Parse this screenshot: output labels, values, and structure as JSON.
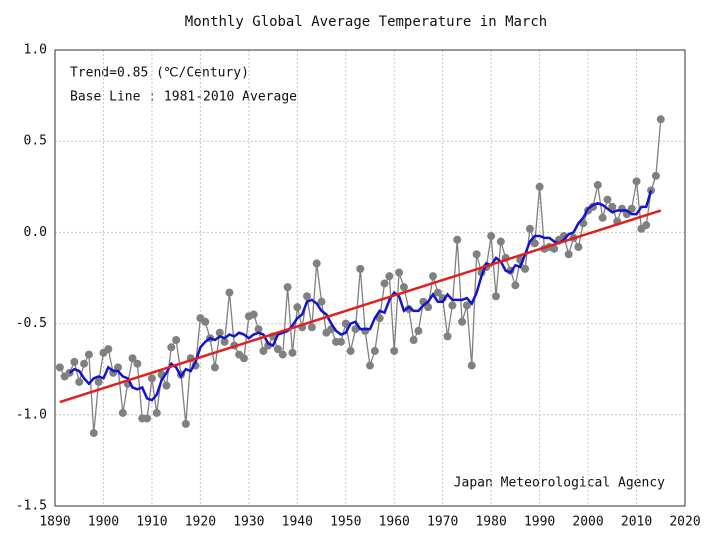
{
  "chart_data": {
    "type": "line",
    "title": "Monthly Global Average Temperature in March",
    "annotations": [
      "Trend=0.85 (℃/Century)",
      "Base Line : 1981-2010 Average"
    ],
    "source": "Japan Meteorological Agency",
    "x": [
      1891,
      1892,
      1893,
      1894,
      1895,
      1896,
      1897,
      1898,
      1899,
      1900,
      1901,
      1902,
      1903,
      1904,
      1905,
      1906,
      1907,
      1908,
      1909,
      1910,
      1911,
      1912,
      1913,
      1914,
      1915,
      1916,
      1917,
      1918,
      1919,
      1920,
      1921,
      1922,
      1923,
      1924,
      1925,
      1926,
      1927,
      1928,
      1929,
      1930,
      1931,
      1932,
      1933,
      1934,
      1935,
      1936,
      1937,
      1938,
      1939,
      1940,
      1941,
      1942,
      1943,
      1944,
      1945,
      1946,
      1947,
      1948,
      1949,
      1950,
      1951,
      1952,
      1953,
      1954,
      1955,
      1956,
      1957,
      1958,
      1959,
      1960,
      1961,
      1962,
      1963,
      1964,
      1965,
      1966,
      1967,
      1968,
      1969,
      1970,
      1971,
      1972,
      1973,
      1974,
      1975,
      1976,
      1977,
      1978,
      1979,
      1980,
      1981,
      1982,
      1983,
      1984,
      1985,
      1986,
      1987,
      1988,
      1989,
      1990,
      1991,
      1992,
      1993,
      1994,
      1995,
      1996,
      1997,
      1998,
      1999,
      2000,
      2001,
      2002,
      2003,
      2004,
      2005,
      2006,
      2007,
      2008,
      2009,
      2010,
      2011,
      2012,
      2013,
      2014,
      2015
    ],
    "series": [
      {
        "color": "#808080",
        "marker": true,
        "values": [
          -0.74,
          -0.79,
          -0.77,
          -0.71,
          -0.82,
          -0.72,
          -0.67,
          -1.1,
          -0.82,
          -0.66,
          -0.64,
          -0.77,
          -0.74,
          -0.99,
          -0.83,
          -0.69,
          -0.72,
          -1.02,
          -1.02,
          -0.8,
          -0.99,
          -0.78,
          -0.84,
          -0.63,
          -0.59,
          -0.78,
          -1.05,
          -0.69,
          -0.73,
          -0.47,
          -0.49,
          -0.58,
          -0.74,
          -0.55,
          -0.6,
          -0.33,
          -0.62,
          -0.67,
          -0.69,
          -0.46,
          -0.45,
          -0.53,
          -0.65,
          -0.62,
          -0.57,
          -0.64,
          -0.67,
          -0.3,
          -0.66,
          -0.41,
          -0.52,
          -0.35,
          -0.52,
          -0.17,
          -0.38,
          -0.55,
          -0.53,
          -0.6,
          -0.6,
          -0.5,
          -0.65,
          -0.53,
          -0.2,
          -0.54,
          -0.73,
          -0.65,
          -0.47,
          -0.28,
          -0.24,
          -0.65,
          -0.22,
          -0.3,
          -0.42,
          -0.59,
          -0.54,
          -0.38,
          -0.41,
          -0.24,
          -0.33,
          -0.36,
          -0.57,
          -0.4,
          -0.04,
          -0.49,
          -0.4,
          -0.73,
          -0.12,
          -0.22,
          -0.19,
          -0.02,
          -0.35,
          -0.05,
          -0.14,
          -0.21,
          -0.29,
          -0.15,
          -0.2,
          0.02,
          -0.06,
          0.25,
          -0.09,
          -0.08,
          -0.09,
          -0.04,
          -0.02,
          -0.12,
          -0.03,
          -0.08,
          0.05,
          0.12,
          0.14,
          0.26,
          0.08,
          0.18,
          0.14,
          0.06,
          0.13,
          0.1,
          0.13,
          0.28,
          0.02,
          0.04,
          0.23,
          0.31,
          0.62
        ]
      },
      {
        "color": "#1414c8",
        "marker": false,
        "values": [
          null,
          null,
          -0.77,
          -0.75,
          -0.76,
          -0.8,
          -0.83,
          -0.8,
          -0.79,
          -0.8,
          -0.74,
          -0.76,
          -0.76,
          -0.79,
          -0.8,
          -0.85,
          -0.86,
          -0.85,
          -0.91,
          -0.92,
          -0.89,
          -0.81,
          -0.77,
          -0.72,
          -0.74,
          -0.79,
          -0.75,
          -0.76,
          -0.71,
          -0.63,
          -0.6,
          -0.58,
          -0.59,
          -0.57,
          -0.58,
          -0.56,
          -0.57,
          -0.55,
          -0.56,
          -0.58,
          -0.56,
          -0.55,
          -0.56,
          -0.61,
          -0.62,
          -0.56,
          -0.55,
          -0.54,
          -0.51,
          -0.47,
          -0.45,
          -0.38,
          -0.37,
          -0.39,
          -0.43,
          -0.45,
          -0.5,
          -0.54,
          -0.56,
          -0.55,
          -0.5,
          -0.49,
          -0.53,
          -0.53,
          -0.53,
          -0.47,
          -0.43,
          -0.44,
          -0.37,
          -0.33,
          -0.35,
          -0.43,
          -0.41,
          -0.43,
          -0.43,
          -0.4,
          -0.38,
          -0.34,
          -0.38,
          -0.38,
          -0.34,
          -0.37,
          -0.37,
          -0.37,
          -0.36,
          -0.39,
          -0.33,
          -0.24,
          -0.17,
          -0.18,
          -0.14,
          -0.16,
          -0.21,
          -0.22,
          -0.18,
          -0.19,
          -0.12,
          -0.05,
          -0.02,
          -0.02,
          -0.03,
          -0.03,
          -0.05,
          -0.06,
          -0.04,
          -0.01,
          0.0,
          0.05,
          0.08,
          0.13,
          0.15,
          0.16,
          0.15,
          0.13,
          0.11,
          0.12,
          0.12,
          0.12,
          0.1,
          0.1,
          0.14,
          0.14,
          0.23,
          null,
          null
        ]
      },
      {
        "color": "#e02020",
        "marker": false,
        "x": [
          1891,
          2015
        ],
        "values": [
          -0.93,
          0.12
        ]
      }
    ],
    "xlim": [
      1890,
      2020
    ],
    "xticks": [
      1890,
      1900,
      1910,
      1920,
      1930,
      1940,
      1950,
      1960,
      1970,
      1980,
      1990,
      2000,
      2010,
      2020
    ],
    "ylim": [
      -1.5,
      1.0
    ],
    "yticks": [
      {
        "value": 1.0,
        "label": "1.0"
      },
      0.5,
      {
        "value": 0.0,
        "label": "0.0"
      },
      -0.5,
      {
        "value": -1.0,
        "label": "-1.0"
      },
      -1.5
    ],
    "grid": true
  }
}
